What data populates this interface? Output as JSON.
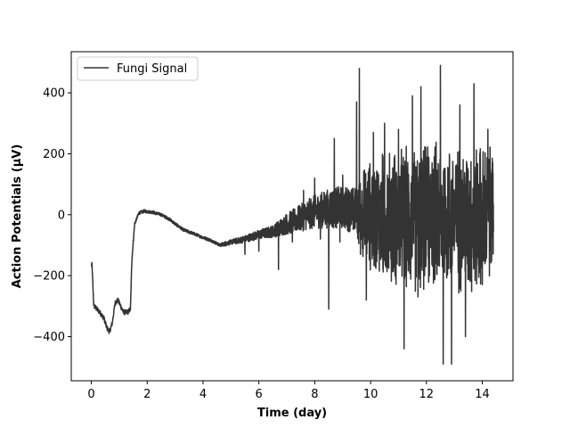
{
  "chart_data": {
    "type": "line",
    "title": "",
    "xlabel": "Time (day)",
    "ylabel": "Action Potentials (µV)",
    "xlim": [
      -0.72,
      15.1
    ],
    "ylim": [
      -545,
      535
    ],
    "xticks": [
      0,
      2,
      4,
      6,
      8,
      10,
      12,
      14
    ],
    "yticks": [
      -400,
      -200,
      0,
      200,
      400
    ],
    "xtick_labels": [
      "0",
      "2",
      "4",
      "6",
      "8",
      "10",
      "12",
      "14"
    ],
    "ytick_labels": [
      "−400",
      "−200",
      "0",
      "200",
      "400"
    ],
    "grid": false,
    "legend_position": "top-left",
    "series": [
      {
        "name": "Fungi Signal",
        "color": "#333333",
        "profile": {
          "t": [
            0.0,
            0.02,
            0.05,
            0.08,
            0.1,
            0.3,
            0.45,
            0.55,
            0.65,
            0.75,
            0.85,
            0.95,
            1.05,
            1.15,
            1.3,
            1.4,
            1.45,
            1.55,
            1.7,
            1.9,
            2.0,
            2.2,
            2.5,
            2.8,
            3.0,
            3.3,
            3.6,
            4.0,
            4.3,
            4.6,
            4.8,
            5.0,
            5.5,
            6.0,
            6.5,
            7.0,
            7.5,
            8.0,
            8.5,
            9.0,
            9.5,
            9.7,
            10.0,
            10.5,
            11.0,
            11.5,
            12.0,
            12.5,
            13.0,
            13.5,
            14.0,
            14.4
          ],
          "v": [
            -170,
            -160,
            -220,
            -290,
            -300,
            -320,
            -340,
            -370,
            -385,
            -355,
            -290,
            -280,
            -300,
            -320,
            -320,
            -310,
            -150,
            -30,
            5,
            12,
            10,
            8,
            0,
            -15,
            -30,
            -50,
            -60,
            -75,
            -85,
            -100,
            -95,
            -90,
            -80,
            -65,
            -55,
            -30,
            -10,
            10,
            20,
            25,
            10,
            -5,
            0,
            -10,
            -10,
            -20,
            -10,
            0,
            -10,
            -20,
            -5,
            0
          ],
          "band": [
            5,
            5,
            5,
            5,
            8,
            8,
            8,
            8,
            8,
            8,
            8,
            8,
            8,
            8,
            8,
            8,
            8,
            5,
            5,
            5,
            5,
            5,
            5,
            5,
            5,
            5,
            5,
            5,
            5,
            5,
            8,
            8,
            12,
            15,
            20,
            35,
            45,
            55,
            65,
            70,
            80,
            140,
            170,
            200,
            210,
            220,
            220,
            230,
            220,
            230,
            220,
            200
          ]
        },
        "spikes": [
          {
            "t": 5.5,
            "v": -130
          },
          {
            "t": 6.0,
            "v": -120
          },
          {
            "t": 6.7,
            "v": -180
          },
          {
            "t": 7.2,
            "v": -90
          },
          {
            "t": 7.6,
            "v": 80
          },
          {
            "t": 8.0,
            "v": 120
          },
          {
            "t": 8.2,
            "v": -80
          },
          {
            "t": 8.5,
            "v": -310
          },
          {
            "t": 8.7,
            "v": 250
          },
          {
            "t": 8.9,
            "v": -90
          },
          {
            "t": 9.0,
            "v": 130
          },
          {
            "t": 9.5,
            "v": 370
          },
          {
            "t": 9.6,
            "v": 480
          },
          {
            "t": 9.85,
            "v": -280
          },
          {
            "t": 10.1,
            "v": 270
          },
          {
            "t": 10.5,
            "v": 300
          },
          {
            "t": 11.0,
            "v": 280
          },
          {
            "t": 11.2,
            "v": -440
          },
          {
            "t": 11.5,
            "v": 390
          },
          {
            "t": 11.7,
            "v": -270
          },
          {
            "t": 11.8,
            "v": 420
          },
          {
            "t": 12.2,
            "v": 170
          },
          {
            "t": 12.5,
            "v": 490
          },
          {
            "t": 12.6,
            "v": -490
          },
          {
            "t": 12.9,
            "v": -490
          },
          {
            "t": 13.2,
            "v": 360
          },
          {
            "t": 13.4,
            "v": -400
          },
          {
            "t": 13.7,
            "v": 430
          },
          {
            "t": 14.0,
            "v": -230
          },
          {
            "t": 14.2,
            "v": 280
          }
        ]
      }
    ]
  }
}
